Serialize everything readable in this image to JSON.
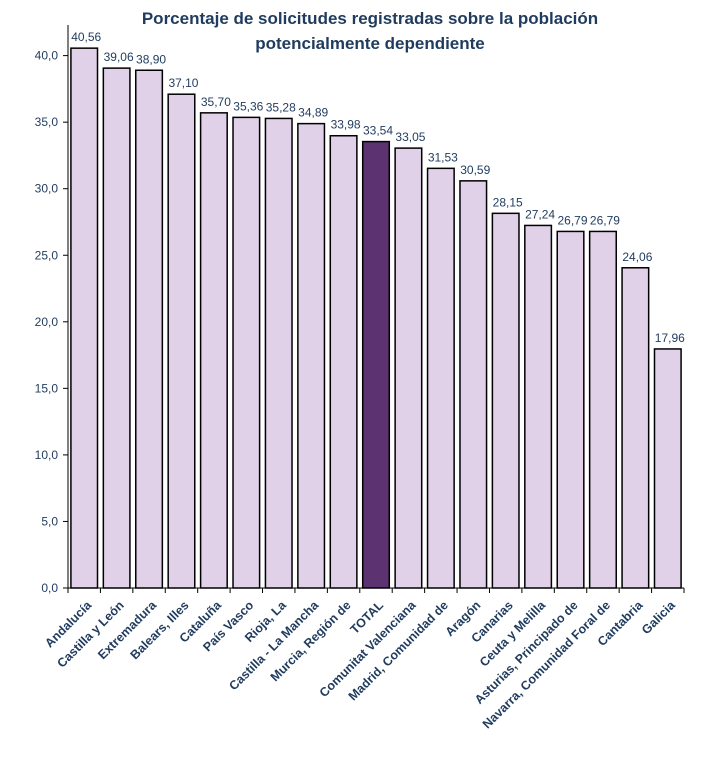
{
  "chart_data": {
    "type": "bar",
    "title": "Porcentaje de solicitudes registradas sobre la población potencialmente dependiente",
    "title_lines": [
      "Porcentaje de solicitudes registradas sobre la población",
      "potencialmente dependiente"
    ],
    "categories": [
      "Andalucía",
      "Castilla y León",
      "Extremadura",
      "Balears, Illes",
      "Cataluña",
      "País Vasco",
      "Rioja, La",
      "Castilla - La Mancha",
      "Murcia, Región de",
      "TOTAL",
      "Comunitat Valenciana",
      "Madrid, Comunidad de",
      "Aragón",
      "Canarias",
      "Ceuta y Melilla",
      "Asturias, Principado de",
      "Navarra, Comunidad Foral de",
      "Cantabria",
      "Galicia"
    ],
    "values": [
      40.56,
      39.06,
      38.9,
      37.1,
      35.7,
      35.36,
      35.28,
      34.89,
      33.98,
      33.54,
      33.05,
      31.53,
      30.59,
      28.15,
      27.24,
      26.79,
      26.79,
      24.06,
      17.96
    ],
    "value_labels": [
      "40,56",
      "39,06",
      "38,90",
      "37,10",
      "35,70",
      "35,36",
      "35,28",
      "34,89",
      "33,98",
      "33,54",
      "33,05",
      "31,53",
      "30,59",
      "28,15",
      "27,24",
      "26,79",
      "26,79",
      "24,06",
      "17,96"
    ],
    "highlight_category": "TOTAL",
    "yticks": [
      "0,0",
      "5,0",
      "10,0",
      "15,0",
      "20,0",
      "25,0",
      "30,0",
      "35,0",
      "40,0"
    ],
    "ylim": [
      0,
      40
    ],
    "xlabel": "",
    "ylabel": "",
    "grid": false,
    "legend": "none",
    "colors": {
      "bar": "#E0D0E8",
      "highlight": "#5C3370",
      "bar_edge": "#000000",
      "text": "#1F3B5E",
      "axis": "#000000"
    }
  }
}
